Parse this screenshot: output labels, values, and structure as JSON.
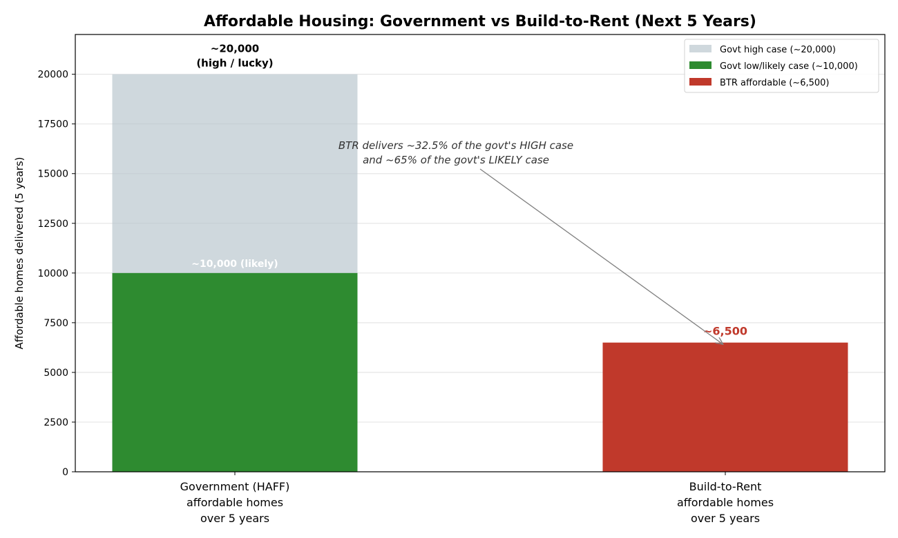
{
  "chart_data": {
    "type": "bar",
    "title": "Affordable Housing: Government vs Build-to-Rent (Next 5 Years)",
    "ylabel": "Affordable homes delivered (5 years)",
    "xlabel": "",
    "ylim": [
      0,
      22000
    ],
    "yticks": [
      0,
      2500,
      5000,
      7500,
      10000,
      12500,
      15000,
      17500,
      20000
    ],
    "grid": "y",
    "legend_position": "top-right",
    "categories": [
      [
        "Government (HAFF)",
        "affordable homes",
        "over 5 years"
      ],
      [
        "Build-to-Rent",
        "affordable homes",
        "over 5 years"
      ]
    ],
    "series": [
      {
        "name": "Govt high case (~20,000)",
        "values": [
          20000,
          null
        ],
        "color": "#cfd8dd"
      },
      {
        "name": "Govt low/likely case (~10,000)",
        "values": [
          10000,
          null
        ],
        "color": "#2e8b30"
      },
      {
        "name": "BTR affordable (~6,500)",
        "values": [
          null,
          6500
        ],
        "color": "#c0392b"
      }
    ],
    "data_labels": {
      "govt_high": [
        "~20,000",
        "(high / lucky)"
      ],
      "govt_likely": "~10,000 (likely)",
      "btr": "~6,500"
    },
    "annotation": {
      "lines": [
        "BTR delivers ~32.5% of the govt's HIGH case",
        "and ~65% of the govt's LIKELY case"
      ],
      "from": {
        "category_index": 0.88,
        "value": 15350
      },
      "to": {
        "category_index": 1,
        "value": 6500
      }
    }
  }
}
